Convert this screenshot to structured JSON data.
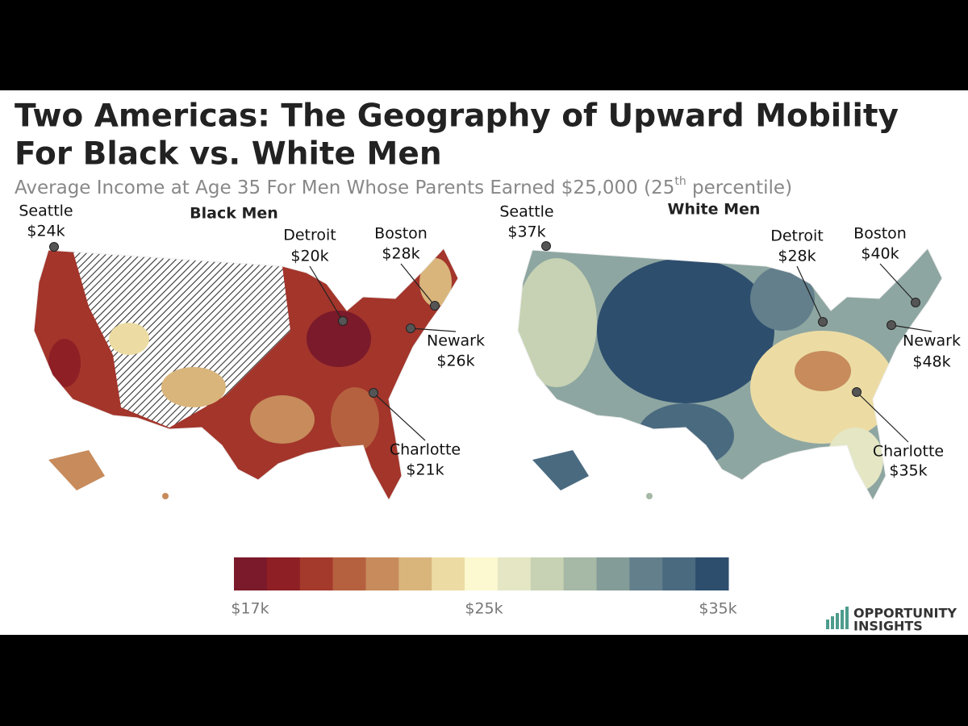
{
  "header": {
    "title_lines": [
      "Two Americas: The Geography of Upward Mobility",
      "For Black vs. White Men"
    ],
    "subtitle": {
      "before": "Average Income at Age 35 For Men Whose Parents Earned $25,000 (25",
      "sup": "th",
      "after": " percentile)"
    }
  },
  "maps": [
    {
      "title": "Black Men",
      "cities": [
        {
          "name": "Seattle",
          "value": "$24k"
        },
        {
          "name": "Detroit",
          "value": "$20k"
        },
        {
          "name": "Boston",
          "value": "$28k"
        },
        {
          "name": "Newark",
          "value": "$26k"
        },
        {
          "name": "Charlotte",
          "value": "$21k"
        }
      ]
    },
    {
      "title": "White Men",
      "cities": [
        {
          "name": "Seattle",
          "value": "$37k"
        },
        {
          "name": "Detroit",
          "value": "$28k"
        },
        {
          "name": "Boston",
          "value": "$40k"
        },
        {
          "name": "Newark",
          "value": "$48k"
        },
        {
          "name": "Charlotte",
          "value": "$35k"
        }
      ]
    }
  ],
  "legend": {
    "colors": [
      "#7b1a2a",
      "#8e1f25",
      "#a43a2c",
      "#b5613f",
      "#c78b5c",
      "#d9b57c",
      "#ecdca4",
      "#fcf8d0",
      "#e4e6c4",
      "#c6d2b3",
      "#a6b8a6",
      "#839c98",
      "#637f8c",
      "#4a6a80",
      "#2e4e6e"
    ],
    "labels": [
      "$17k",
      "$25k",
      "$35k"
    ]
  },
  "logo": {
    "line1": "OPPORTUNITY",
    "line2": "INSIGHTS"
  }
}
